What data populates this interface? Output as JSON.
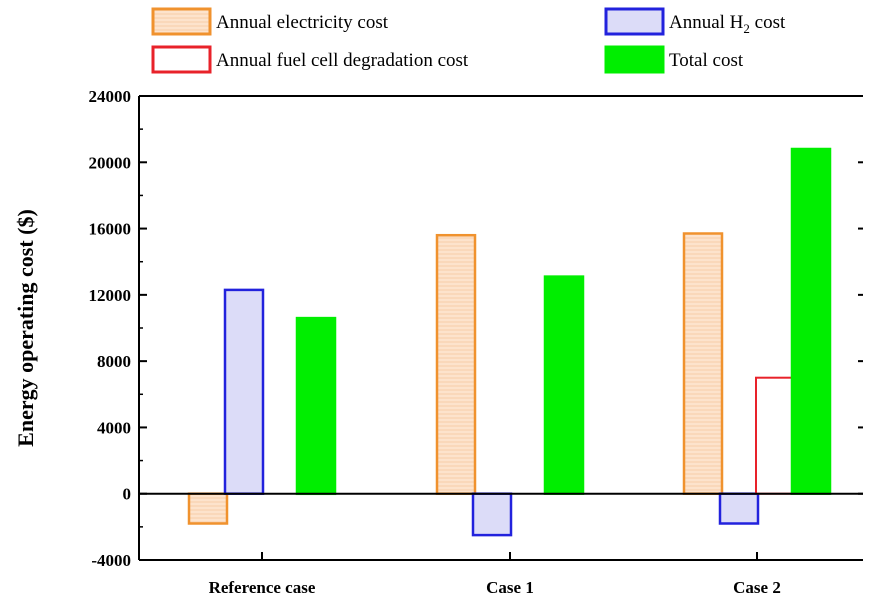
{
  "chart_data": {
    "type": "bar",
    "ylabel": "Energy operating cost ($)",
    "ylim": [
      -4000,
      24000
    ],
    "yticks": [
      -4000,
      0,
      4000,
      8000,
      12000,
      16000,
      20000,
      24000
    ],
    "categories": [
      "Reference case",
      "Case 1",
      "Case 2"
    ],
    "legend_position": "top",
    "series": [
      {
        "name": "Annual electricity cost",
        "values": [
          -1800,
          15600,
          15700
        ],
        "fill": "#fde3cc",
        "stroke": "#f0922e",
        "hatch": true
      },
      {
        "name": "Annual H2 cost",
        "name_display": {
          "pre": "Annual H",
          "sub": "2",
          "post": " cost"
        },
        "values": [
          12300,
          -2500,
          -1800
        ],
        "fill": "#dcdcf8",
        "stroke": "#2222dd",
        "hatch": false
      },
      {
        "name": "Annual fuel cell degradation cost",
        "values": [
          0,
          0,
          7000
        ],
        "fill": "#ffffff",
        "stroke": "#e8222a",
        "hatch": false
      },
      {
        "name": "Total cost",
        "values": [
          10600,
          13100,
          20800
        ],
        "fill": "#00ee00",
        "stroke": "#00ee00",
        "hatch": false
      }
    ]
  }
}
